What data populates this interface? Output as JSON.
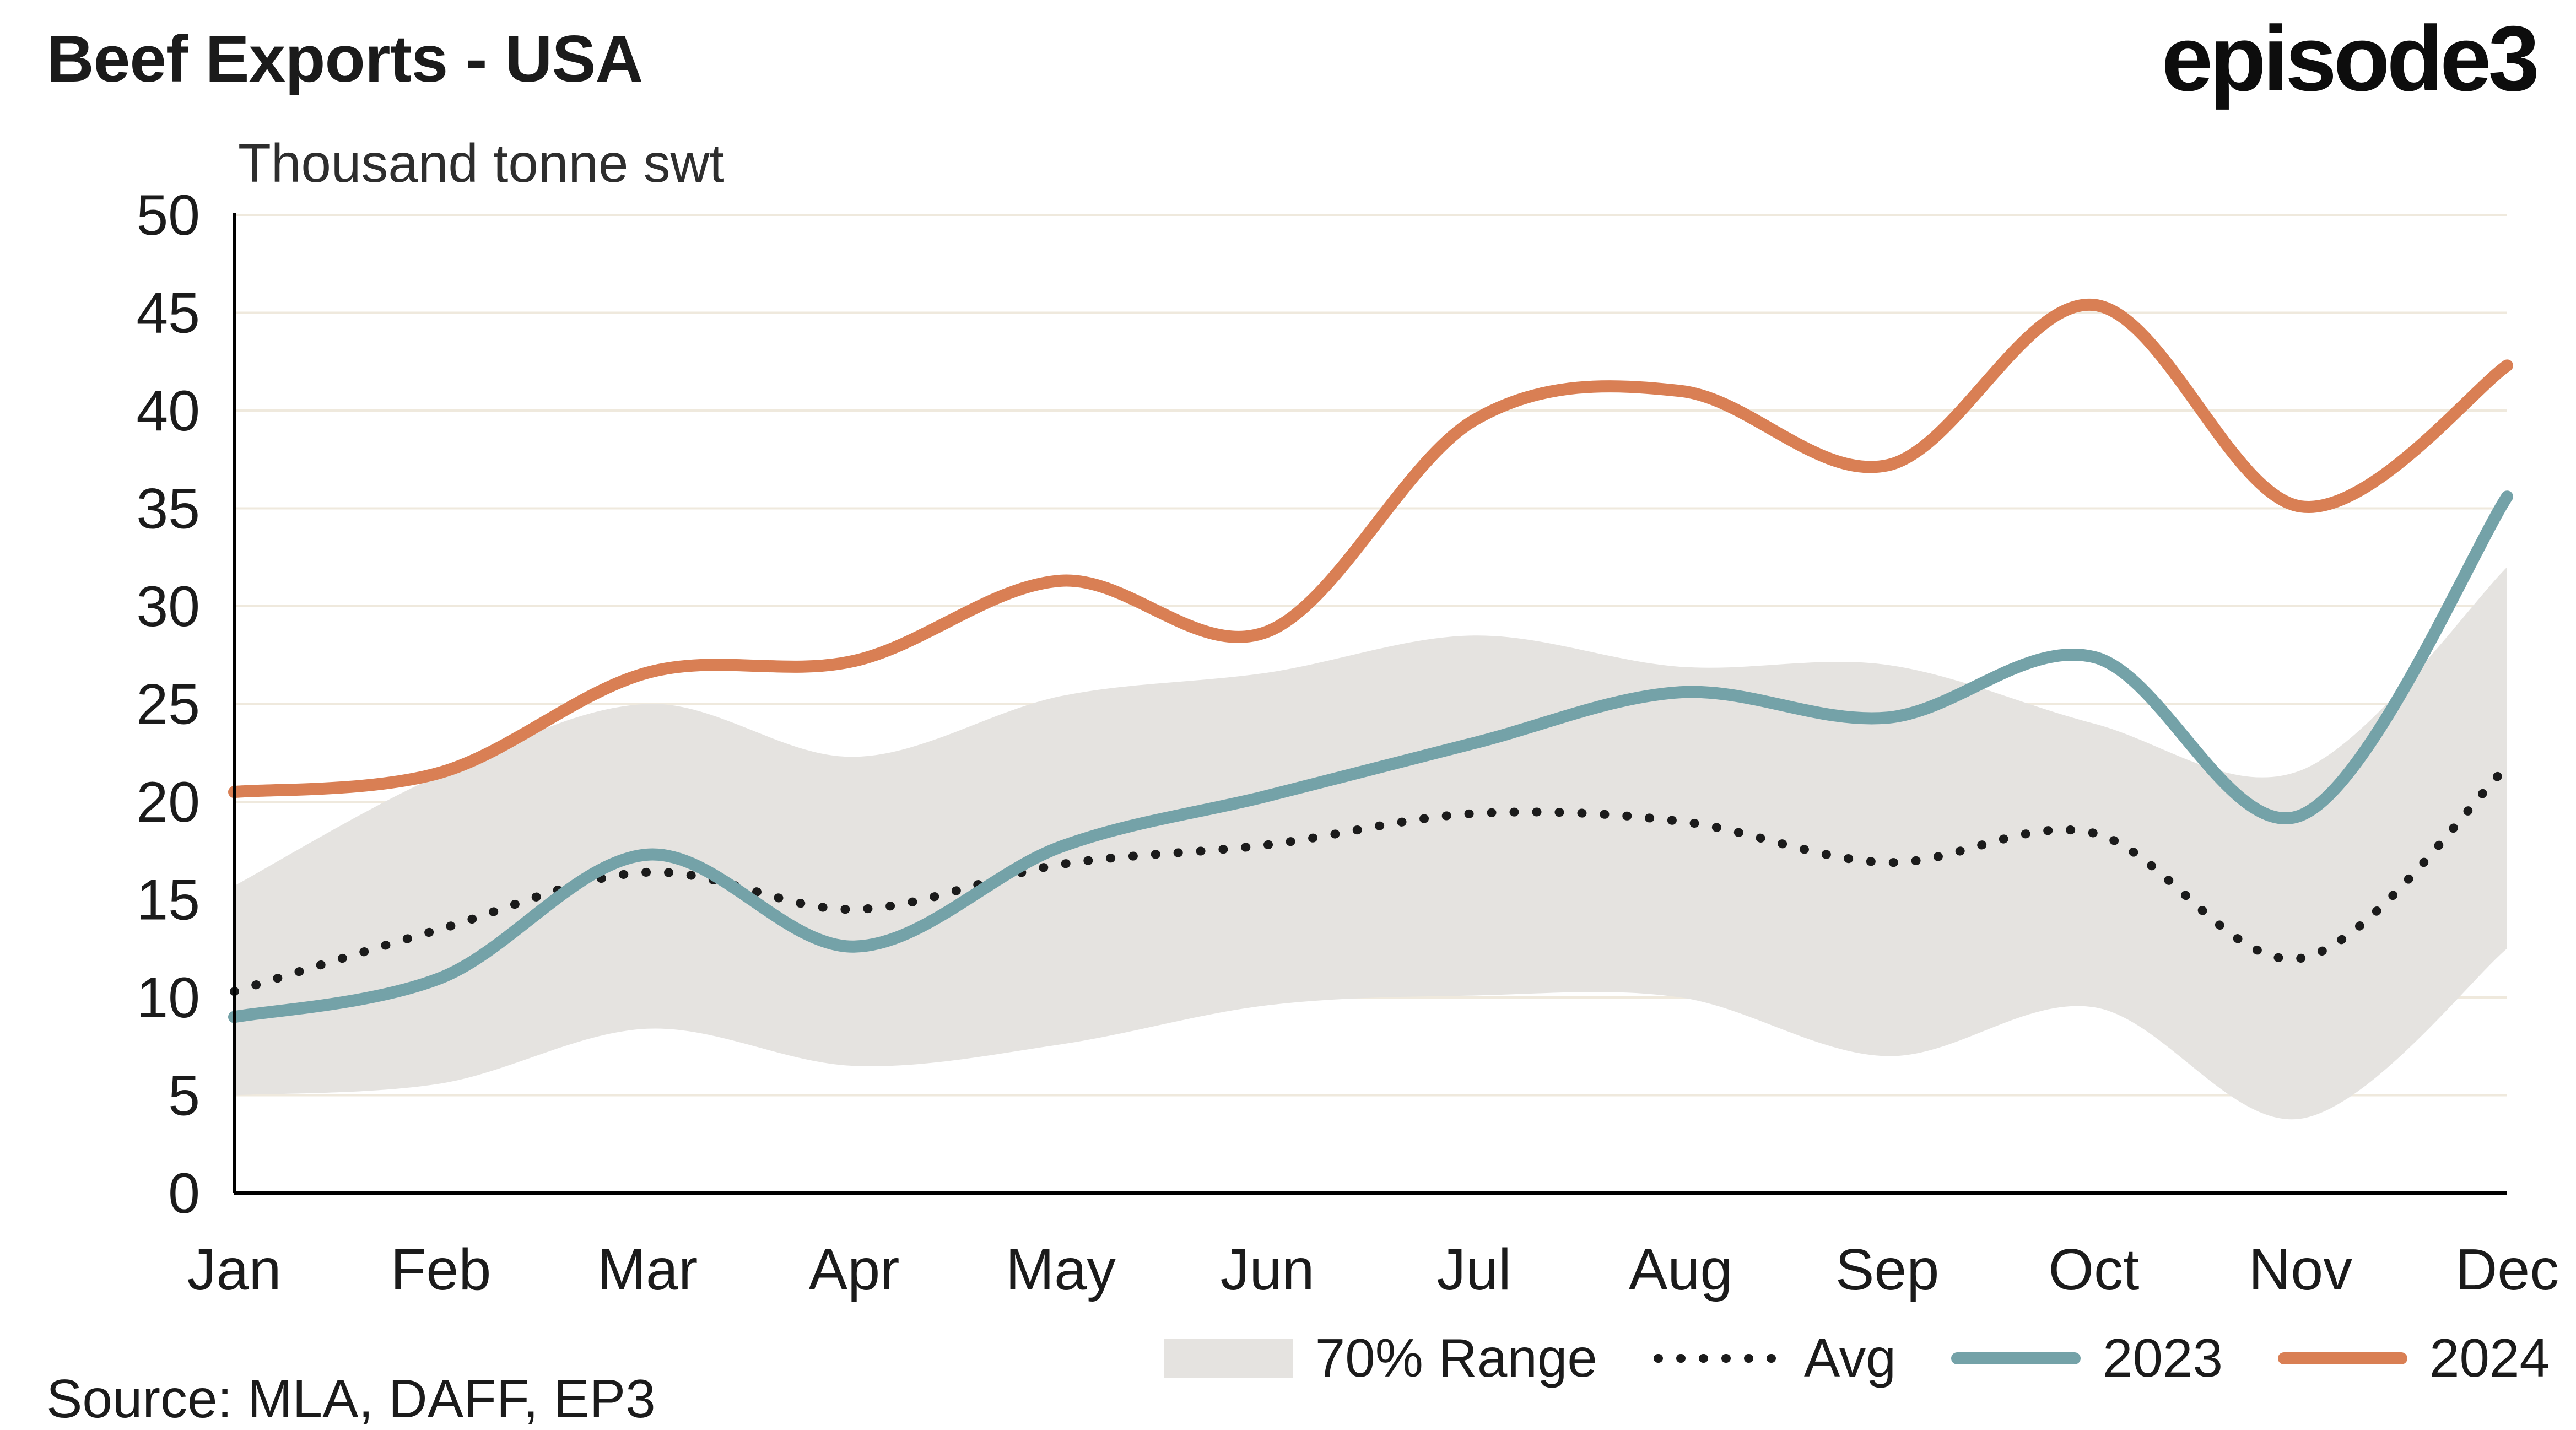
{
  "header": {
    "title": "Beef Exports - USA",
    "subtitle": "Thousand tonne swt",
    "logo": "episode3"
  },
  "footer": {
    "source": "Source: MLA, DAFF, EP3"
  },
  "colors": {
    "band": "#e5e3e0",
    "avg": "#1b1b1b",
    "s2023": "#74a2a8",
    "s2024": "#d97f54",
    "grid": "#efe9dd",
    "axis": "#000000",
    "text": "#1b1b1b"
  },
  "legend": [
    {
      "label": "70% Range",
      "type": "band"
    },
    {
      "label": "Avg",
      "type": "dotted"
    },
    {
      "label": "2023",
      "type": "line",
      "colorKey": "s2023"
    },
    {
      "label": "2024",
      "type": "line",
      "colorKey": "s2024"
    }
  ],
  "chart_data": {
    "type": "line",
    "title": "Beef Exports - USA",
    "unit": "Thousand tonne swt",
    "categories": [
      "Jan",
      "Feb",
      "Mar",
      "Apr",
      "May",
      "Jun",
      "Jul",
      "Aug",
      "Sep",
      "Oct",
      "Nov",
      "Dec"
    ],
    "ylim": [
      0,
      50
    ],
    "yticks": [
      0,
      5,
      10,
      15,
      20,
      25,
      30,
      35,
      40,
      45,
      50
    ],
    "grid": true,
    "legend_position": "bottom",
    "band": {
      "name": "70% Range",
      "lower": [
        5.0,
        5.6,
        8.4,
        6.5,
        7.6,
        9.6,
        10.1,
        10.0,
        7.0,
        9.5,
        3.8,
        12.5
      ],
      "upper": [
        15.7,
        21.4,
        25.0,
        22.3,
        25.4,
        26.6,
        28.5,
        26.9,
        27.0,
        24.0,
        21.6,
        32.0
      ]
    },
    "series": [
      {
        "name": "Avg",
        "style": "dotted",
        "values": [
          10.3,
          13.5,
          16.4,
          14.5,
          16.8,
          17.8,
          19.4,
          19.0,
          16.9,
          18.4,
          12.0,
          21.8
        ]
      },
      {
        "name": "2023",
        "style": "solid",
        "values": [
          9.0,
          11.0,
          17.3,
          12.6,
          17.7,
          20.3,
          23.0,
          25.6,
          24.3,
          27.4,
          19.3,
          35.6
        ]
      },
      {
        "name": "2024",
        "style": "solid",
        "values": [
          20.5,
          21.5,
          26.6,
          27.2,
          31.3,
          28.7,
          39.5,
          41.0,
          37.2,
          45.4,
          35.1,
          42.3
        ]
      }
    ]
  }
}
